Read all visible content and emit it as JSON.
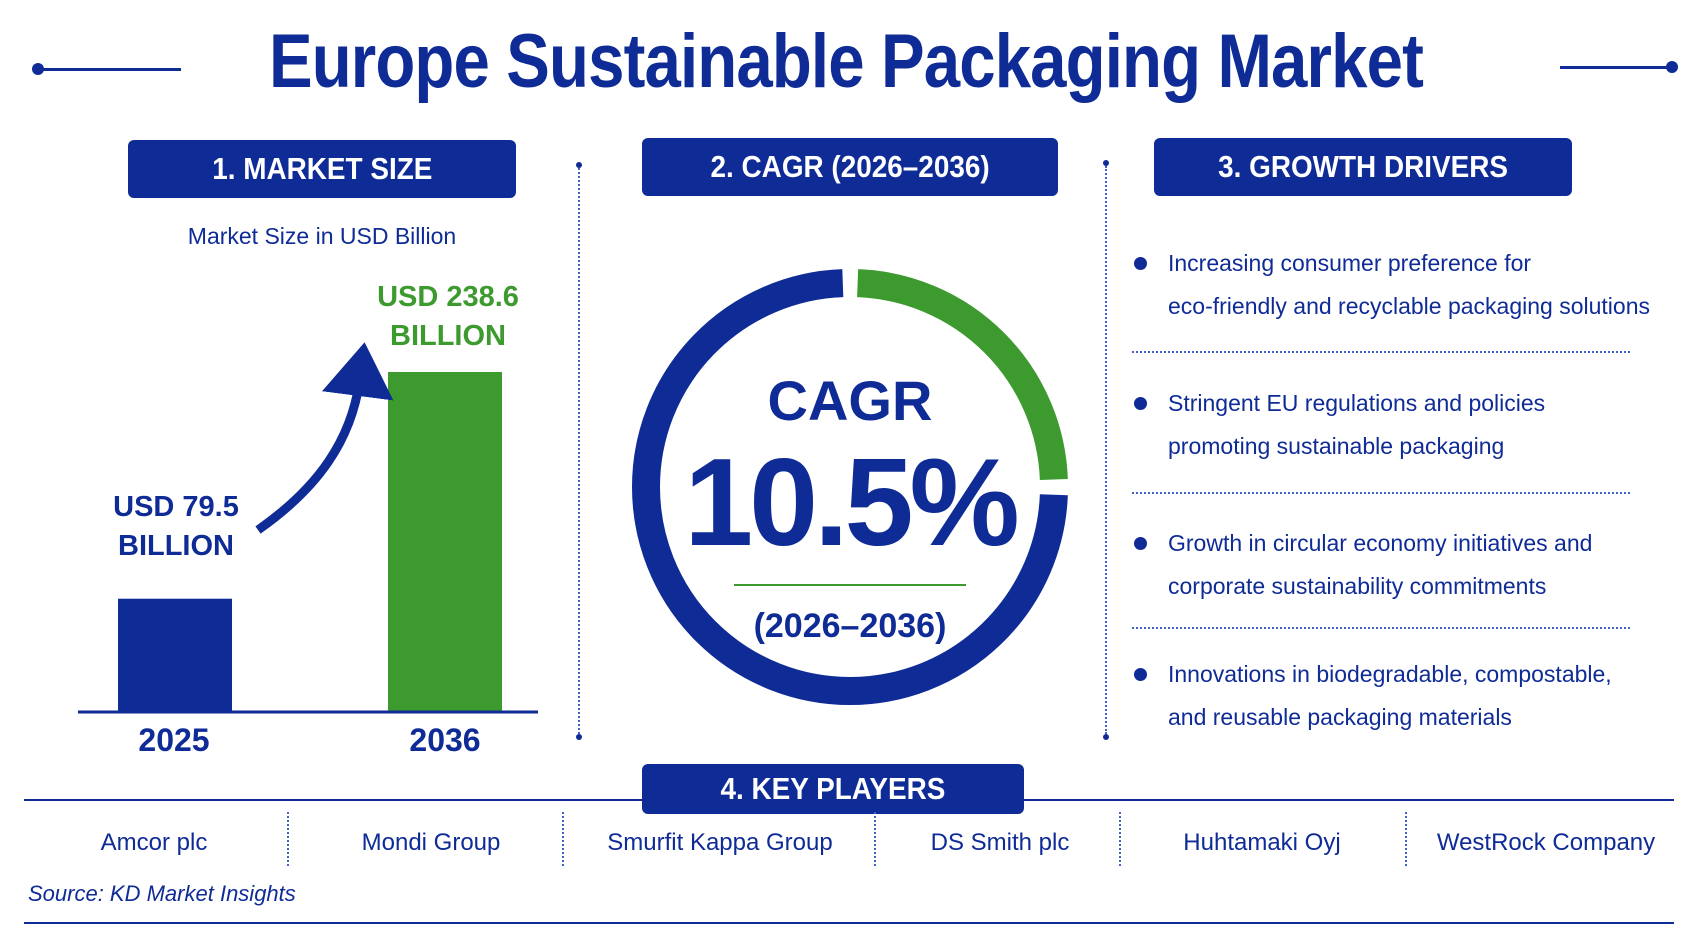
{
  "title": "Europe Sustainable Packaging Market",
  "colors": {
    "primary": "#0f2b96",
    "accent_green": "#3c9a2e"
  },
  "market_size": {
    "heading": "1. MARKET SIZE",
    "subtitle": "Market Size in USD Billion",
    "bars": [
      {
        "year": "2025",
        "label": "USD 79.5\nBILLION"
      },
      {
        "year": "2036",
        "label": "USD 238.6\nBILLION"
      }
    ]
  },
  "cagr": {
    "heading": "2. CAGR (2026–2036)",
    "label": "CAGR",
    "value": "10.5%",
    "period": "(2026–2036)",
    "ring_green_fraction": 0.25
  },
  "growth_drivers": {
    "heading": "3. GROWTH DRIVERS",
    "items": [
      {
        "line1": "Increasing consumer preference for",
        "line2": "eco-friendly and recyclable packaging solutions"
      },
      {
        "line1": "Stringent EU regulations and policies",
        "line2": "promoting sustainable packaging"
      },
      {
        "line1": "Growth in circular economy initiatives and",
        "line2": "corporate sustainability commitments"
      },
      {
        "line1": "Innovations in biodegradable, compostable,",
        "line2": "and reusable packaging materials"
      }
    ]
  },
  "key_players": {
    "heading": "4. KEY PLAYERS",
    "players": [
      "Amcor plc",
      "Mondi Group",
      "Smurfit Kappa Group",
      "DS Smith plc",
      "Huhtamaki Oyj",
      "WestRock Company"
    ]
  },
  "source": "Source: KD Market Insights",
  "chart_data": {
    "type": "bar",
    "title": "",
    "xlabel": "",
    "ylabel": "Market Size in USD Billion",
    "categories": [
      "2025",
      "2036"
    ],
    "values": [
      79.5,
      238.6
    ],
    "colors": [
      "#0f2b96",
      "#3c9a2e"
    ],
    "grid": false,
    "legend": "none"
  }
}
